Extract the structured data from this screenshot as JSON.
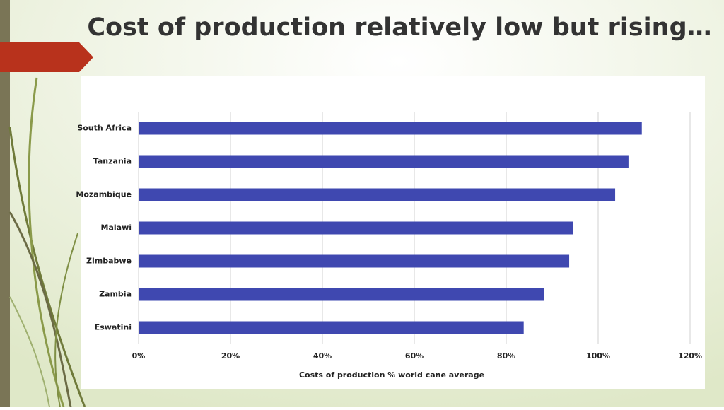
{
  "chart_data": {
    "type": "bar",
    "orientation": "horizontal",
    "title": "Cost of production relatively low but rising…",
    "x_label": "Costs of production % world cane average",
    "categories": [
      "South Africa",
      "Tanzania",
      "Mozambique",
      "Malawi",
      "Zimbabwe",
      "Zambia",
      "Eswatini"
    ],
    "values": [
      109.5,
      106.6,
      103.7,
      94.6,
      93.7,
      88.2,
      83.8
    ],
    "color": "#3f48b0",
    "xlim": [
      0,
      120
    ],
    "xticks": [
      {
        "value": 0,
        "label": "0%"
      },
      {
        "value": 20,
        "label": "20%"
      },
      {
        "value": 40,
        "label": "40%"
      },
      {
        "value": 60,
        "label": "60%"
      },
      {
        "value": 80,
        "label": "80%"
      },
      {
        "value": 100,
        "label": "100%"
      },
      {
        "value": 120,
        "label": "120%"
      }
    ],
    "grid": true
  }
}
